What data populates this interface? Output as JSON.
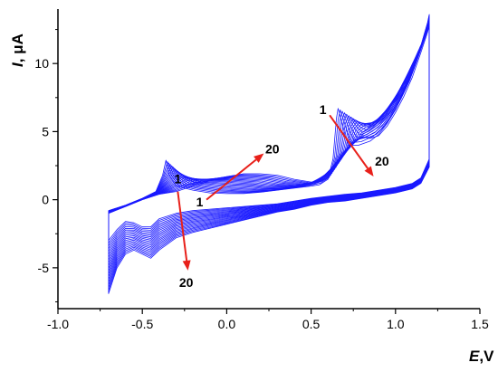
{
  "chart_data": {
    "type": "line",
    "xlabel": {
      "symbol": "E",
      "unit": ",V"
    },
    "ylabel": {
      "symbol": "I",
      "unit": ", μA"
    },
    "xlim": [
      -1.0,
      1.5
    ],
    "ylim": [
      -8.0,
      14.0
    ],
    "xticks": [
      -1.0,
      -0.5,
      0.0,
      0.5,
      1.0,
      1.5
    ],
    "xtick_labels": [
      "-1.0",
      "-0.5",
      "0.0",
      "0.5",
      "1.0",
      "1.5"
    ],
    "yticks": [
      -5,
      0,
      5,
      10
    ],
    "ytick_labels": [
      "-5",
      "0",
      "5",
      "10"
    ],
    "grid": false,
    "curve_color": "#1a1aff",
    "arrow_color": "#e8201a",
    "cycles": 20,
    "first_cycle": {
      "forward": [
        [
          -0.7,
          -0.8
        ],
        [
          -0.6,
          -0.4
        ],
        [
          -0.5,
          0.1
        ],
        [
          -0.42,
          0.6
        ],
        [
          -0.38,
          1.8
        ],
        [
          -0.36,
          2.9
        ],
        [
          -0.34,
          1.8
        ],
        [
          -0.3,
          1.0
        ],
        [
          -0.2,
          0.7
        ],
        [
          -0.1,
          0.5
        ],
        [
          0.0,
          0.45
        ],
        [
          0.1,
          0.45
        ],
        [
          0.2,
          0.55
        ],
        [
          0.3,
          0.7
        ],
        [
          0.4,
          0.85
        ],
        [
          0.5,
          1.0
        ],
        [
          0.55,
          1.1
        ],
        [
          0.6,
          1.5
        ],
        [
          0.63,
          3.0
        ],
        [
          0.65,
          6.0
        ],
        [
          0.66,
          6.7
        ],
        [
          0.68,
          5.8
        ],
        [
          0.7,
          4.8
        ],
        [
          0.72,
          4.0
        ],
        [
          0.78,
          4.0
        ],
        [
          0.85,
          4.3
        ],
        [
          0.9,
          4.8
        ],
        [
          0.95,
          5.6
        ],
        [
          1.0,
          6.6
        ],
        [
          1.05,
          7.9
        ],
        [
          1.1,
          9.3
        ],
        [
          1.15,
          11.3
        ],
        [
          1.19,
          13.0
        ],
        [
          1.2,
          13.6
        ]
      ],
      "reverse": [
        [
          1.2,
          3.0
        ],
        [
          1.15,
          1.6
        ],
        [
          1.1,
          1.2
        ],
        [
          1.0,
          0.9
        ],
        [
          0.9,
          0.7
        ],
        [
          0.8,
          0.5
        ],
        [
          0.7,
          0.4
        ],
        [
          0.6,
          0.25
        ],
        [
          0.5,
          0.1
        ],
        [
          0.4,
          -0.1
        ],
        [
          0.3,
          -0.3
        ],
        [
          0.2,
          -0.4
        ],
        [
          0.1,
          -0.5
        ],
        [
          0.0,
          -0.6
        ],
        [
          -0.1,
          -0.7
        ],
        [
          -0.2,
          -0.8
        ],
        [
          -0.3,
          -1.0
        ],
        [
          -0.4,
          -1.4
        ],
        [
          -0.45,
          -2.0
        ],
        [
          -0.5,
          -2.0
        ],
        [
          -0.55,
          -1.7
        ],
        [
          -0.6,
          -1.6
        ],
        [
          -0.65,
          -2.2
        ],
        [
          -0.7,
          -3.0
        ]
      ]
    },
    "last_cycle": {
      "forward": [
        [
          -0.7,
          -1.0
        ],
        [
          -0.6,
          -0.5
        ],
        [
          -0.5,
          0.0
        ],
        [
          -0.4,
          0.4
        ],
        [
          -0.3,
          0.6
        ],
        [
          -0.2,
          1.0
        ],
        [
          -0.1,
          1.4
        ],
        [
          0.0,
          1.7
        ],
        [
          0.1,
          1.9
        ],
        [
          0.2,
          1.9
        ],
        [
          0.3,
          1.8
        ],
        [
          0.4,
          1.5
        ],
        [
          0.5,
          1.3
        ],
        [
          0.55,
          1.3
        ],
        [
          0.6,
          1.6
        ],
        [
          0.65,
          2.5
        ],
        [
          0.7,
          3.6
        ],
        [
          0.75,
          4.3
        ],
        [
          0.8,
          4.6
        ],
        [
          0.85,
          4.5
        ],
        [
          0.9,
          4.7
        ],
        [
          0.95,
          5.4
        ],
        [
          1.0,
          6.4
        ],
        [
          1.05,
          7.6
        ],
        [
          1.1,
          9.0
        ],
        [
          1.15,
          10.8
        ],
        [
          1.19,
          12.3
        ],
        [
          1.2,
          12.8
        ]
      ],
      "reverse": [
        [
          1.2,
          2.4
        ],
        [
          1.15,
          1.2
        ],
        [
          1.1,
          0.8
        ],
        [
          1.0,
          0.5
        ],
        [
          0.9,
          0.3
        ],
        [
          0.8,
          0.1
        ],
        [
          0.7,
          -0.1
        ],
        [
          0.6,
          -0.2
        ],
        [
          0.5,
          -0.4
        ],
        [
          0.4,
          -0.7
        ],
        [
          0.3,
          -0.9
        ],
        [
          0.2,
          -1.2
        ],
        [
          0.1,
          -1.5
        ],
        [
          0.0,
          -1.8
        ],
        [
          -0.1,
          -2.1
        ],
        [
          -0.2,
          -2.4
        ],
        [
          -0.3,
          -2.8
        ],
        [
          -0.4,
          -3.7
        ],
        [
          -0.45,
          -4.3
        ],
        [
          -0.5,
          -4.0
        ],
        [
          -0.55,
          -3.7
        ],
        [
          -0.6,
          -4.0
        ],
        [
          -0.65,
          -5.0
        ],
        [
          -0.7,
          -6.9
        ]
      ]
    },
    "annotations": [
      {
        "label_start": "1",
        "label_end": "20",
        "start": [
          -0.29,
          0.6
        ],
        "end": [
          -0.23,
          -5.2
        ],
        "start_label_at": [
          -0.29,
          1.2
        ],
        "end_label_at": [
          -0.24,
          -6.4
        ]
      },
      {
        "label_start": "1",
        "label_end": "20",
        "start": [
          -0.12,
          0.0
        ],
        "end": [
          0.22,
          3.4
        ],
        "start_label_at": [
          -0.16,
          -0.5
        ],
        "end_label_at": [
          0.27,
          3.4
        ]
      },
      {
        "label_start": "1",
        "label_end": "20",
        "start": [
          0.61,
          6.2
        ],
        "end": [
          0.87,
          1.7
        ],
        "start_label_at": [
          0.57,
          6.3
        ],
        "end_label_at": [
          0.92,
          2.5
        ]
      }
    ]
  }
}
